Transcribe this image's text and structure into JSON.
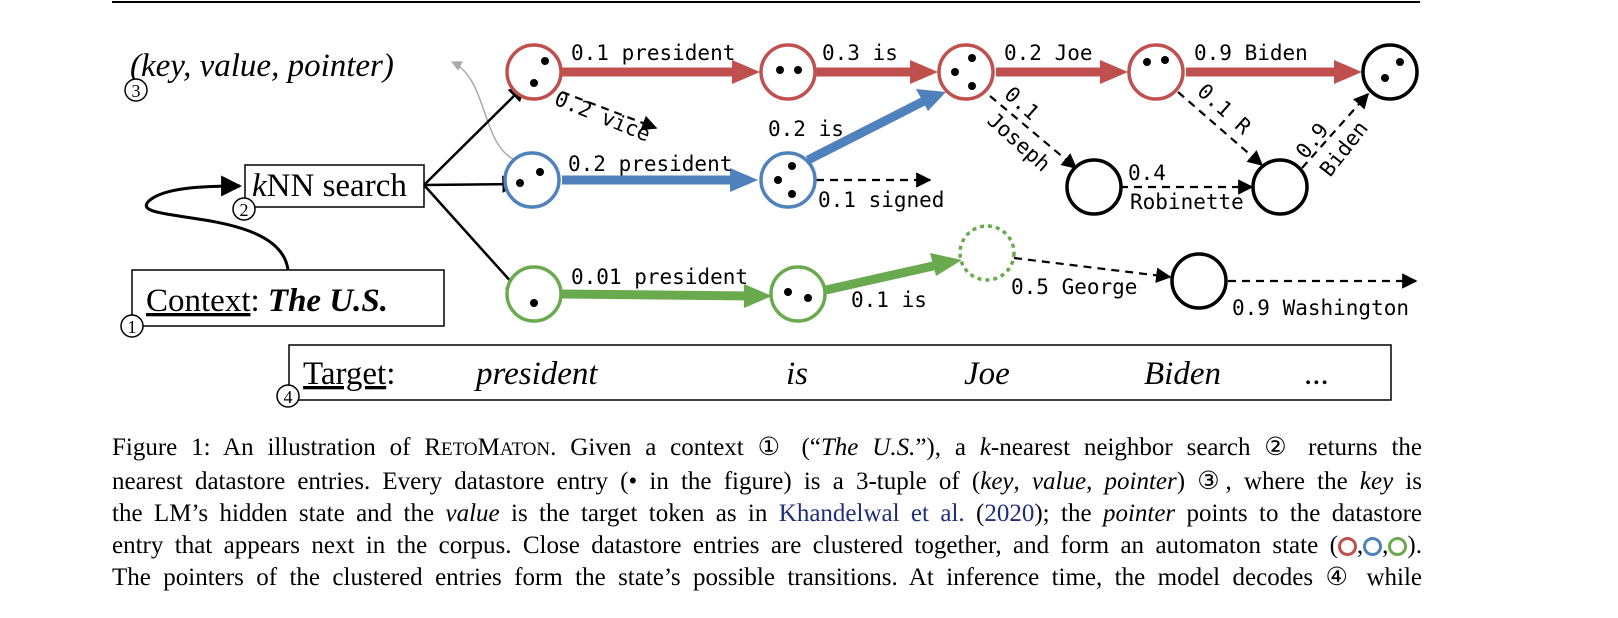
{
  "figure": {
    "tuple_label": "(key, value, pointer)",
    "tuple_marker": "3",
    "knn": {
      "label_k": "k",
      "label_rest": "NN search",
      "marker": "2"
    },
    "context": {
      "label": "Context",
      "colon": ":",
      "value": "The U.S.",
      "marker": "1"
    },
    "target": {
      "label": "Target",
      "colon": ":",
      "marker": "4",
      "tokens": [
        "president",
        "is",
        "Joe",
        "Biden",
        "..."
      ]
    },
    "edges": {
      "red_president": "0.1 president",
      "red_is": "0.3 is",
      "red_joe": "0.2 Joe",
      "red_biden": "0.9 Biden",
      "vice": "0.2 vice",
      "blue_president": "0.2 president",
      "blue_is": "0.2 is",
      "signed": "0.1 signed",
      "joseph_prob": "0.1",
      "joseph_word": "Joseph",
      "r_label": "0.1 R",
      "robinette_prob": "0.4",
      "robinette_word": "Robinette",
      "biden2_prob": "0.9",
      "biden2_word": "Biden",
      "green_president": "0.01 president",
      "green_is": "0.1 is",
      "george": "0.5 George",
      "washington": "0.9 Washington"
    },
    "colors": {
      "red": "#c0504d",
      "blue": "#4f81bd",
      "green": "#6aaa4f"
    }
  },
  "caption": {
    "l1_a": "Figure 1: An illustration of R",
    "l1_sc1": "ETO",
    "l1_b": "M",
    "l1_sc2": "ATON",
    "l1_c": ". Given a context ① (“",
    "l1_it": "The U.S.",
    "l1_d": "”), a ",
    "l1_k": "k",
    "l1_e": "-nearest neighbor search ② returns the",
    "l2_a": "nearest datastore entries. Every datastore entry (• in the figure) is a 3-tuple of (",
    "l2_key": "key",
    "l2_sep1": ", ",
    "l2_value": "value",
    "l2_sep2": ", ",
    "l2_pointer": "pointer",
    "l2_b": ") ③, where the ",
    "l2_key2": "key",
    "l2_c": " is",
    "l3_a": "the LM’s hidden state and the ",
    "l3_value": "value",
    "l3_b": " is the target token as in ",
    "l3_cite": "Khandelwal et al.",
    "l3_c": " (",
    "l3_year": "2020",
    "l3_d": "); the ",
    "l3_pointer": "pointer",
    "l3_e": " points to the datastore",
    "l4_a": "entry that appears next in the corpus. Close datastore entries are clustered together, and form an automaton state (",
    "l4_b": ").",
    "l5": "The pointers of the clustered entries form the state’s possible transitions. At inference time, the model decodes ④ while"
  }
}
